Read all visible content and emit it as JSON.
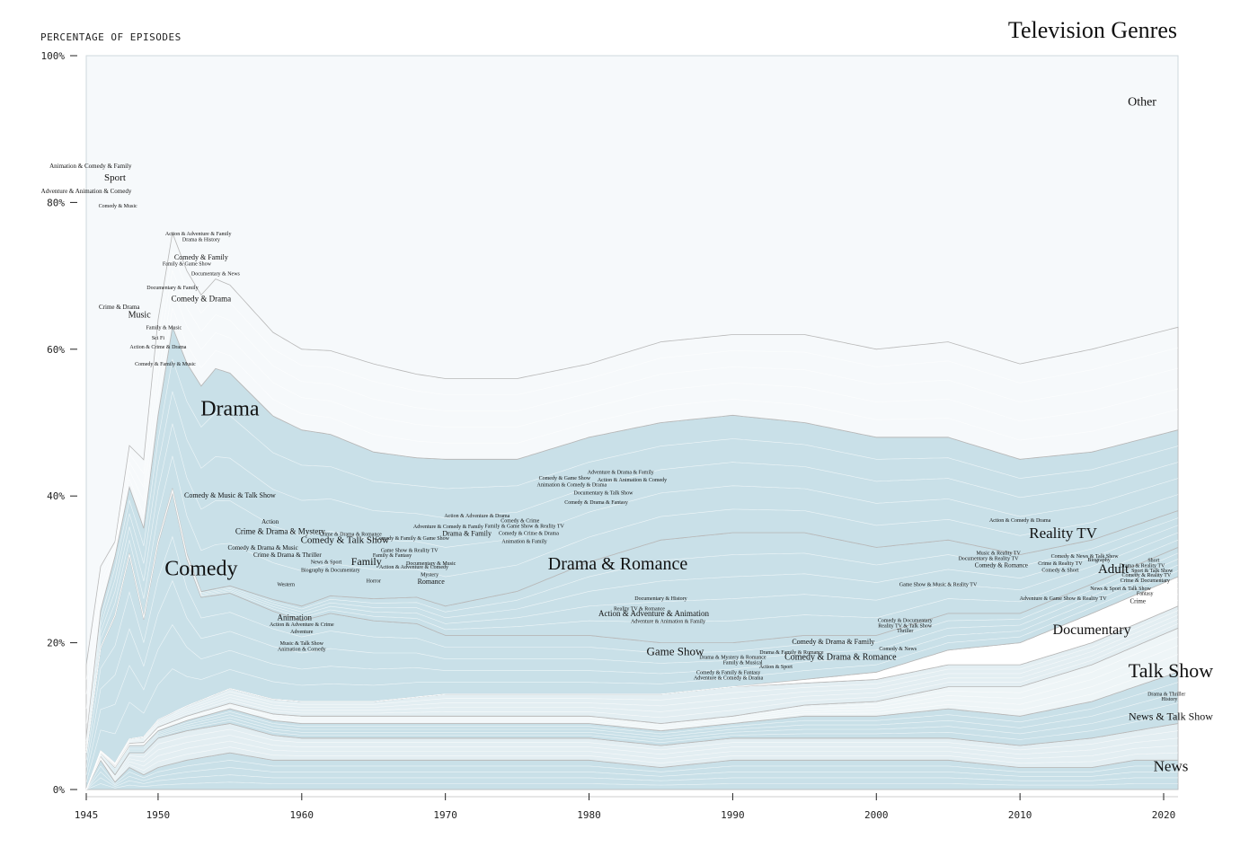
{
  "chart_data": {
    "type": "area",
    "title": "Television Genres",
    "ylabel": "PERCENTAGE OF EPISODES",
    "xlabel": "",
    "xlim": [
      1945,
      2021
    ],
    "ylim": [
      0,
      100
    ],
    "x_ticks": [
      1945,
      1950,
      1960,
      1970,
      1980,
      1990,
      2000,
      2010,
      2020
    ],
    "y_ticks": [
      {
        "value": 0,
        "label": "0%"
      },
      {
        "value": 20,
        "label": "20%"
      },
      {
        "value": 40,
        "label": "40%"
      },
      {
        "value": 60,
        "label": "60%"
      },
      {
        "value": 80,
        "label": "80%"
      },
      {
        "value": 100,
        "label": "100%"
      }
    ],
    "colors": {
      "light": "#f6f9fb",
      "mid": "#e3eef2",
      "main": "#c9e0e8",
      "pale": "#eef5f7",
      "white": "#ffffff",
      "stroke": "#b8b8b8"
    },
    "series": [
      {
        "name": "News",
        "x": [
          1945,
          1946,
          1947,
          1948,
          1949,
          1950,
          1952,
          1955,
          1958,
          1960,
          1965,
          1970,
          1975,
          1980,
          1985,
          1990,
          1995,
          2000,
          2005,
          2010,
          2015,
          2018,
          2021
        ],
        "y": [
          0,
          4,
          1,
          3,
          2,
          3,
          4,
          5,
          4,
          4,
          4,
          4,
          4,
          4,
          3,
          4,
          4,
          4,
          4,
          3,
          3,
          4,
          4
        ]
      },
      {
        "name": "News & Talk Show",
        "x": [
          1945,
          1947,
          1950,
          1955,
          1960,
          1965,
          1970,
          1975,
          1980,
          1985,
          1990,
          1995,
          2000,
          2005,
          2010,
          2015,
          2018,
          2021
        ],
        "y": [
          0,
          1,
          4,
          4,
          3,
          3,
          3,
          3,
          3,
          3,
          3,
          3,
          3,
          3,
          3,
          4,
          4,
          5
        ]
      },
      {
        "name": "Talk Show",
        "x": [
          1945,
          1947,
          1950,
          1955,
          1960,
          1965,
          1970,
          1975,
          1980,
          1985,
          1990,
          1995,
          2000,
          2005,
          2010,
          2015,
          2018,
          2021
        ],
        "y": [
          0,
          1,
          1,
          2,
          2,
          2,
          2,
          2,
          2,
          2,
          2,
          3,
          3,
          4,
          4,
          5,
          6,
          7
        ]
      },
      {
        "name": "Documentary",
        "x": [
          1945,
          1950,
          1960,
          1970,
          1980,
          1990,
          2000,
          2005,
          2010,
          2015,
          2021
        ],
        "y": [
          0,
          0.5,
          1,
          1,
          1,
          1,
          2,
          3,
          4,
          5,
          6
        ]
      },
      {
        "name": "Game Show",
        "x": [
          1945,
          1950,
          1955,
          1960,
          1965,
          1970,
          1975,
          1980,
          1985,
          1990,
          1995,
          2000,
          2005,
          2010,
          2015,
          2021
        ],
        "y": [
          0,
          1,
          2,
          2,
          2,
          3,
          3,
          3,
          4,
          4,
          3,
          3,
          3,
          3,
          3,
          3
        ]
      },
      {
        "name": "Reality TV",
        "x": [
          1945,
          1990,
          1995,
          2000,
          2005,
          2010,
          2015,
          2021
        ],
        "y": [
          0,
          0,
          0.5,
          1,
          2,
          3,
          4,
          4
        ]
      },
      {
        "name": "Comedy",
        "x": [
          1945,
          1946,
          1947,
          1948,
          1949,
          1950,
          1951,
          1952,
          1953,
          1955,
          1958,
          1960,
          1962,
          1965,
          1968,
          1970,
          1975,
          1980,
          1985,
          1990,
          1995,
          2000,
          2005,
          2010,
          2015,
          2021
        ],
        "y": [
          5,
          14,
          20,
          25,
          16,
          24,
          30,
          20,
          14,
          13,
          12,
          11,
          12,
          11,
          10,
          8,
          8,
          8,
          7,
          6,
          6,
          5,
          5,
          4,
          4,
          4
        ]
      },
      {
        "name": "Drama & Romance",
        "x": [
          1945,
          1950,
          1955,
          1960,
          1965,
          1970,
          1975,
          1980,
          1985,
          1990,
          1995,
          2000,
          2005,
          2010,
          2015,
          2021
        ],
        "y": [
          0,
          0.5,
          1,
          2,
          3,
          4,
          6,
          10,
          14,
          15,
          14,
          12,
          10,
          8,
          6,
          5
        ]
      },
      {
        "name": "Drama",
        "x": [
          1945,
          1946,
          1947,
          1948,
          1949,
          1950,
          1951,
          1952,
          1953,
          1954,
          1955,
          1958,
          1960,
          1962,
          1965,
          1968,
          1970,
          1975,
          1980,
          1985,
          1990,
          1995,
          2000,
          2005,
          2010,
          2015,
          2021
        ],
        "y": [
          2,
          5,
          8,
          9,
          12,
          17,
          22,
          26,
          28,
          30,
          29,
          25,
          24,
          22,
          20,
          19,
          20,
          18,
          17,
          16,
          16,
          15,
          15,
          14,
          13,
          12,
          11
        ]
      },
      {
        "name": "Other",
        "x": [
          1945,
          1947,
          1950,
          1955,
          1960,
          1965,
          1970,
          1975,
          1980,
          1985,
          1990,
          1995,
          2000,
          2005,
          2010,
          2015,
          2021
        ],
        "y": [
          10,
          2,
          13,
          12,
          11,
          12,
          11,
          11,
          10,
          11,
          11,
          12,
          12,
          13,
          13,
          14,
          14
        ]
      }
    ],
    "annotations": [
      {
        "text": "Television Genres",
        "x": 2020,
        "y": 103
      },
      {
        "text": "Other",
        "x": 2018.5,
        "y": 93.2,
        "size": 14
      },
      {
        "text": "Drama",
        "x": 1955,
        "y": 51,
        "size": 24
      },
      {
        "text": "Comedy",
        "x": 1953,
        "y": 29.2,
        "size": 24
      },
      {
        "text": "Drama & Romance",
        "x": 1982,
        "y": 30,
        "size": 20
      },
      {
        "text": "Reality TV",
        "x": 2013,
        "y": 34.3,
        "size": 17
      },
      {
        "text": "Adult",
        "x": 2016.5,
        "y": 29.5,
        "size": 15
      },
      {
        "text": "Documentary",
        "x": 2015,
        "y": 21.2,
        "size": 16
      },
      {
        "text": "Talk Show",
        "x": 2020.5,
        "y": 15.3,
        "size": 22
      },
      {
        "text": "News & Talk Show",
        "x": 2020.5,
        "y": 9.5,
        "size": 12
      },
      {
        "text": "News",
        "x": 2020.5,
        "y": 2.5,
        "size": 17
      },
      {
        "text": "Game Show",
        "x": 1986,
        "y": 18.3,
        "size": 13
      },
      {
        "text": "Sport",
        "x": 1947,
        "y": 83,
        "size": 11
      },
      {
        "text": "Music",
        "x": 1948.7,
        "y": 64.3,
        "size": 10
      },
      {
        "text": "Family",
        "x": 1964.5,
        "y": 30.6,
        "size": 12
      },
      {
        "text": "Comedy & Talk Show",
        "x": 1963,
        "y": 33.6,
        "size": 11
      },
      {
        "text": "Crime & Drama & Mystery",
        "x": 1958.5,
        "y": 34.8,
        "size": 9
      },
      {
        "text": "Comedy & Music & Talk Show",
        "x": 1955,
        "y": 39.8,
        "size": 8
      },
      {
        "text": "Comedy & Drama",
        "x": 1953,
        "y": 66.5,
        "size": 9
      },
      {
        "text": "Comedy & Family",
        "x": 1953,
        "y": 72.2,
        "size": 8
      },
      {
        "text": "Animation & Comedy & Family",
        "x": 1945.3,
        "y": 84.7,
        "size": 7
      },
      {
        "text": "Adventure & Animation & Comedy",
        "x": 1945,
        "y": 81.3,
        "size": 7
      },
      {
        "text": "Comedy & Music",
        "x": 1947.2,
        "y": 79.3,
        "size": 6
      },
      {
        "text": "Action & Adventure & Family",
        "x": 1952.8,
        "y": 75.5,
        "size": 6
      },
      {
        "text": "Drama & History",
        "x": 1953,
        "y": 74.7,
        "size": 6
      },
      {
        "text": "Family & Game Show",
        "x": 1952,
        "y": 71.4,
        "size": 6
      },
      {
        "text": "Documentary & News",
        "x": 1954,
        "y": 70.1,
        "size": 6
      },
      {
        "text": "Documentary & Family",
        "x": 1951,
        "y": 68.2,
        "size": 6
      },
      {
        "text": "Crime & Drama",
        "x": 1947.3,
        "y": 65.5,
        "size": 7
      },
      {
        "text": "Family & Music",
        "x": 1950.4,
        "y": 62.7,
        "size": 6
      },
      {
        "text": "Sci Fi",
        "x": 1950,
        "y": 61.3,
        "size": 6
      },
      {
        "text": "Action & Crime & Drama",
        "x": 1950,
        "y": 60.1,
        "size": 6
      },
      {
        "text": "Comedy & Family & Music",
        "x": 1950.5,
        "y": 57.8,
        "size": 6
      },
      {
        "text": "Action",
        "x": 1957.8,
        "y": 36.2,
        "size": 7
      },
      {
        "text": "Comedy & Drama & Music",
        "x": 1957.3,
        "y": 32.7,
        "size": 7
      },
      {
        "text": "Crime & Drama & Thriller",
        "x": 1959,
        "y": 31.7,
        "size": 7
      },
      {
        "text": "News & Sport",
        "x": 1961.7,
        "y": 30.8,
        "size": 6
      },
      {
        "text": "Biography & Documentary",
        "x": 1962,
        "y": 29.7,
        "size": 6
      },
      {
        "text": "Western",
        "x": 1958.9,
        "y": 27.7,
        "size": 6
      },
      {
        "text": "Animation",
        "x": 1959.5,
        "y": 23.1,
        "size": 9
      },
      {
        "text": "Action & Adventure & Crime",
        "x": 1960,
        "y": 22.3,
        "size": 6
      },
      {
        "text": "Adventure",
        "x": 1960,
        "y": 21.3,
        "size": 6
      },
      {
        "text": "Music & Talk Show",
        "x": 1960,
        "y": 19.7,
        "size": 6
      },
      {
        "text": "Animation & Comedy",
        "x": 1960,
        "y": 18.9,
        "size": 6
      },
      {
        "text": "Crime & Drama & Romance",
        "x": 1963.4,
        "y": 34.6,
        "size": 6
      },
      {
        "text": "Game Show & Reality TV",
        "x": 1967.5,
        "y": 32.4,
        "size": 6
      },
      {
        "text": "Family & Fantasy",
        "x": 1966.3,
        "y": 31.7,
        "size": 6
      },
      {
        "text": "Action & Adventure & Comedy",
        "x": 1967.8,
        "y": 30.1,
        "size": 6
      },
      {
        "text": "Horror",
        "x": 1965,
        "y": 28.2,
        "size": 6
      },
      {
        "text": "Documentary & Music",
        "x": 1969,
        "y": 30.6,
        "size": 6
      },
      {
        "text": "Mystery",
        "x": 1968.9,
        "y": 29.1,
        "size": 6
      },
      {
        "text": "Romance",
        "x": 1969,
        "y": 28,
        "size": 8
      },
      {
        "text": "Comedy & Family & Game Show",
        "x": 1967.7,
        "y": 34,
        "size": 6
      },
      {
        "text": "Adventure & Comedy & Family",
        "x": 1970.2,
        "y": 35.6,
        "size": 6
      },
      {
        "text": "Drama & Family",
        "x": 1971.5,
        "y": 34.6,
        "size": 8
      },
      {
        "text": "Action & Adventure & Drama",
        "x": 1972.2,
        "y": 37.1,
        "size": 6
      },
      {
        "text": "Comedy & Crime",
        "x": 1975.2,
        "y": 36.4,
        "size": 6
      },
      {
        "text": "Family & Game Show & Reality TV",
        "x": 1975.5,
        "y": 35.7,
        "size": 6
      },
      {
        "text": "Comedy & Crime & Drama",
        "x": 1975.8,
        "y": 34.7,
        "size": 6
      },
      {
        "text": "Animation & Family",
        "x": 1975.5,
        "y": 33.6,
        "size": 6
      },
      {
        "text": "Comedy & Game Show",
        "x": 1978.3,
        "y": 42.2,
        "size": 6
      },
      {
        "text": "Adventure & Drama & Family",
        "x": 1982.2,
        "y": 43,
        "size": 6
      },
      {
        "text": "Animation & Comedy & Drama",
        "x": 1978.8,
        "y": 41.3,
        "size": 6
      },
      {
        "text": "Action & Animation & Comedy",
        "x": 1983,
        "y": 42,
        "size": 6
      },
      {
        "text": "Documentary & Talk Show",
        "x": 1981,
        "y": 40.2,
        "size": 6
      },
      {
        "text": "Comedy & Drama & Fantasy",
        "x": 1980.5,
        "y": 38.9,
        "size": 6
      },
      {
        "text": "Documentary & History",
        "x": 1985,
        "y": 25.8,
        "size": 6
      },
      {
        "text": "Reality TV & Romance",
        "x": 1983.5,
        "y": 24.4,
        "size": 6
      },
      {
        "text": "Action & Adventure & Animation",
        "x": 1984.5,
        "y": 23.6,
        "size": 9
      },
      {
        "text": "Adventure & Animation & Family",
        "x": 1985.5,
        "y": 22.7,
        "size": 6
      },
      {
        "text": "Drama & Mystery & Romance",
        "x": 1990,
        "y": 17.8,
        "size": 6
      },
      {
        "text": "Family & Musical",
        "x": 1990.7,
        "y": 17.1,
        "size": 6
      },
      {
        "text": "Action & Sport",
        "x": 1993,
        "y": 16.5,
        "size": 6
      },
      {
        "text": "Comedy & Family & Fantasy",
        "x": 1989.7,
        "y": 15.7,
        "size": 6
      },
      {
        "text": "Adventure & Comedy & Drama",
        "x": 1989.7,
        "y": 15,
        "size": 6
      },
      {
        "text": "Drama & Family & Romance",
        "x": 1994.1,
        "y": 18.5,
        "size": 6
      },
      {
        "text": "Comedy & Drama & Family",
        "x": 1997,
        "y": 19.8,
        "size": 8
      },
      {
        "text": "Comedy & Drama & Romance",
        "x": 1997.5,
        "y": 17.7,
        "size": 10
      },
      {
        "text": "Comedy & News",
        "x": 2001.5,
        "y": 19,
        "size": 6
      },
      {
        "text": "Comedy & Documentary",
        "x": 2002,
        "y": 22.8,
        "size": 6
      },
      {
        "text": "Reality TV & Talk Show",
        "x": 2002,
        "y": 22.1,
        "size": 6
      },
      {
        "text": "Thriller",
        "x": 2002,
        "y": 21.4,
        "size": 6
      },
      {
        "text": "Game Show & Music & Reality TV",
        "x": 2004.3,
        "y": 27.7,
        "size": 6
      },
      {
        "text": "Music & Reality TV",
        "x": 2008.5,
        "y": 32,
        "size": 6
      },
      {
        "text": "Documentary & Reality TV",
        "x": 2007.8,
        "y": 31.3,
        "size": 6
      },
      {
        "text": "Comedy & Romance",
        "x": 2008.7,
        "y": 30.3,
        "size": 7
      },
      {
        "text": "Action & Comedy & Drama",
        "x": 2010,
        "y": 36.5,
        "size": 6
      },
      {
        "text": "Comedy & News & Talk Show",
        "x": 2014.5,
        "y": 31.6,
        "size": 6
      },
      {
        "text": "Crime & Reality TV",
        "x": 2012.8,
        "y": 30.6,
        "size": 6
      },
      {
        "text": "Biography",
        "x": 2015.5,
        "y": 31.1,
        "size": 6
      },
      {
        "text": "Comedy & Short",
        "x": 2012.8,
        "y": 29.7,
        "size": 6
      },
      {
        "text": "News & Sport & Talk Show",
        "x": 2017,
        "y": 27.2,
        "size": 6
      },
      {
        "text": "Adventure & Game Show & Reality TV",
        "x": 2013,
        "y": 25.8,
        "size": 6
      },
      {
        "text": "Crime",
        "x": 2018.2,
        "y": 25.4,
        "size": 7
      },
      {
        "text": "Short",
        "x": 2019.3,
        "y": 31,
        "size": 6
      },
      {
        "text": "Drama & Reality TV",
        "x": 2018.5,
        "y": 30.3,
        "size": 6
      },
      {
        "text": "Sport & Talk Show",
        "x": 2019.2,
        "y": 29.6,
        "size": 6
      },
      {
        "text": "Comedy & Reality TV",
        "x": 2018.8,
        "y": 29,
        "size": 6
      },
      {
        "text": "Crime & Documentary",
        "x": 2018.7,
        "y": 28.3,
        "size": 6
      },
      {
        "text": "Fantasy",
        "x": 2018.7,
        "y": 26.5,
        "size": 6
      },
      {
        "text": "Drama & Thriller",
        "x": 2020.2,
        "y": 12.8,
        "size": 6
      },
      {
        "text": "History",
        "x": 2020.4,
        "y": 12.1,
        "size": 6
      }
    ]
  }
}
